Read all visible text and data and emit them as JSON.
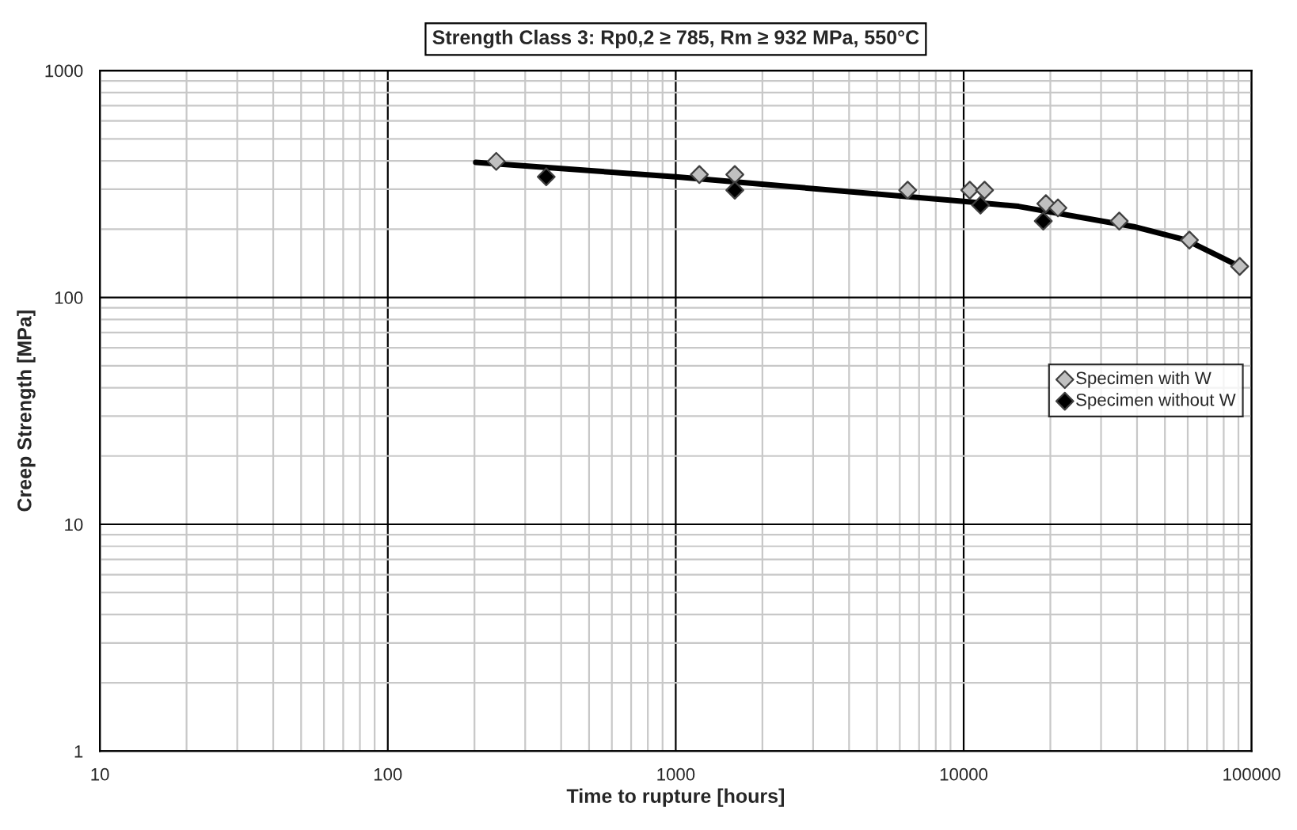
{
  "chart_data": {
    "type": "scatter",
    "title": "Strength Class 3: Rp0,2 ≥ 785, Rm ≥ 932 MPa, 550°C",
    "xlabel": "Time to rupture [hours]",
    "ylabel": "Creep Strength [MPa]",
    "log": "xy",
    "xlim": [
      10,
      100000
    ],
    "xticks": [
      10,
      100,
      1000,
      10000,
      100000
    ],
    "ylim": [
      1,
      1000
    ],
    "yticks": [
      1,
      10,
      100,
      1000
    ],
    "grid": true,
    "legend": "right",
    "marker": "diamond",
    "series": [
      {
        "name": "Specimen with W",
        "color": "#c0c0c0",
        "x": [
          238,
          1208,
          1604,
          6390,
          10500,
          11820,
          19300,
          21250,
          34700,
          60800,
          90900
        ],
        "values": [
          398,
          348,
          348,
          297,
          297,
          297,
          259,
          248,
          217,
          179,
          137
        ]
      },
      {
        "name": "Specimen without W",
        "color": "#000000",
        "x": [
          355,
          1604,
          11440,
          18900
        ],
        "values": [
          340,
          297,
          255,
          217
        ]
      },
      {
        "type": "line",
        "color": "#000000",
        "marker": "none",
        "x": [
          202,
          1000,
          10000,
          15520,
          39000,
          59300,
          92000
        ],
        "values": [
          394,
          340,
          265,
          252,
          205,
          179,
          136
        ]
      }
    ]
  }
}
